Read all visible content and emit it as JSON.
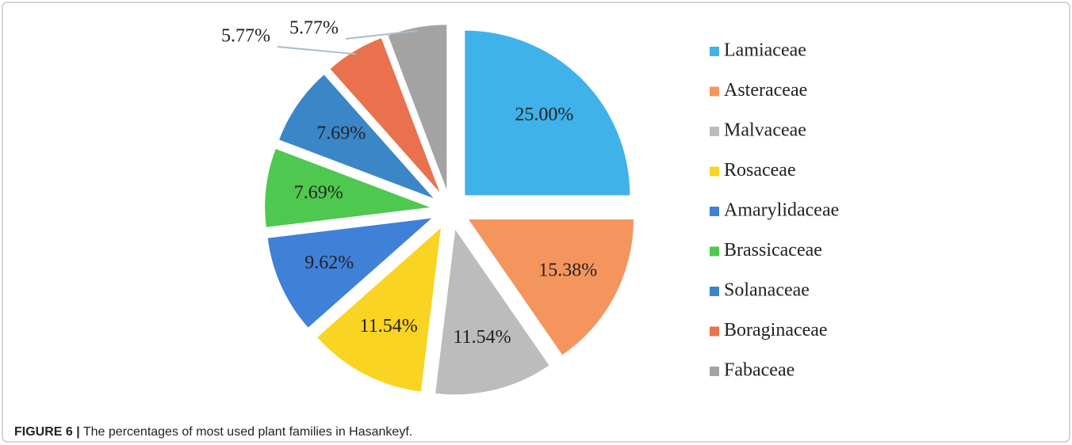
{
  "chart_data": {
    "type": "pie",
    "categories": [
      "Lamiaceae",
      "Asteraceae",
      "Malvaceae",
      "Rosaceae",
      "Amarylidaceae",
      "Brassicaceae",
      "Solanaceae",
      "Boraginaceae",
      "Fabaceae"
    ],
    "values": [
      25.0,
      15.38,
      11.54,
      11.54,
      9.62,
      7.69,
      7.69,
      5.77,
      5.77
    ],
    "value_labels": [
      "25.00%",
      "15.38%",
      "11.54%",
      "11.54%",
      "9.62%",
      "7.69%",
      "7.69%",
      "5.77%",
      "5.77%"
    ],
    "colors": [
      "#3fb2ea",
      "#f5955e",
      "#bcbcbc",
      "#f9d423",
      "#3f80d9",
      "#4ec84e",
      "#3b86c7",
      "#e9714d",
      "#a3a3a3"
    ],
    "legend": "right"
  },
  "caption": {
    "label": "FIGURE 6 |",
    "text": "The percentages of most used plant families in Hasankeyf."
  }
}
